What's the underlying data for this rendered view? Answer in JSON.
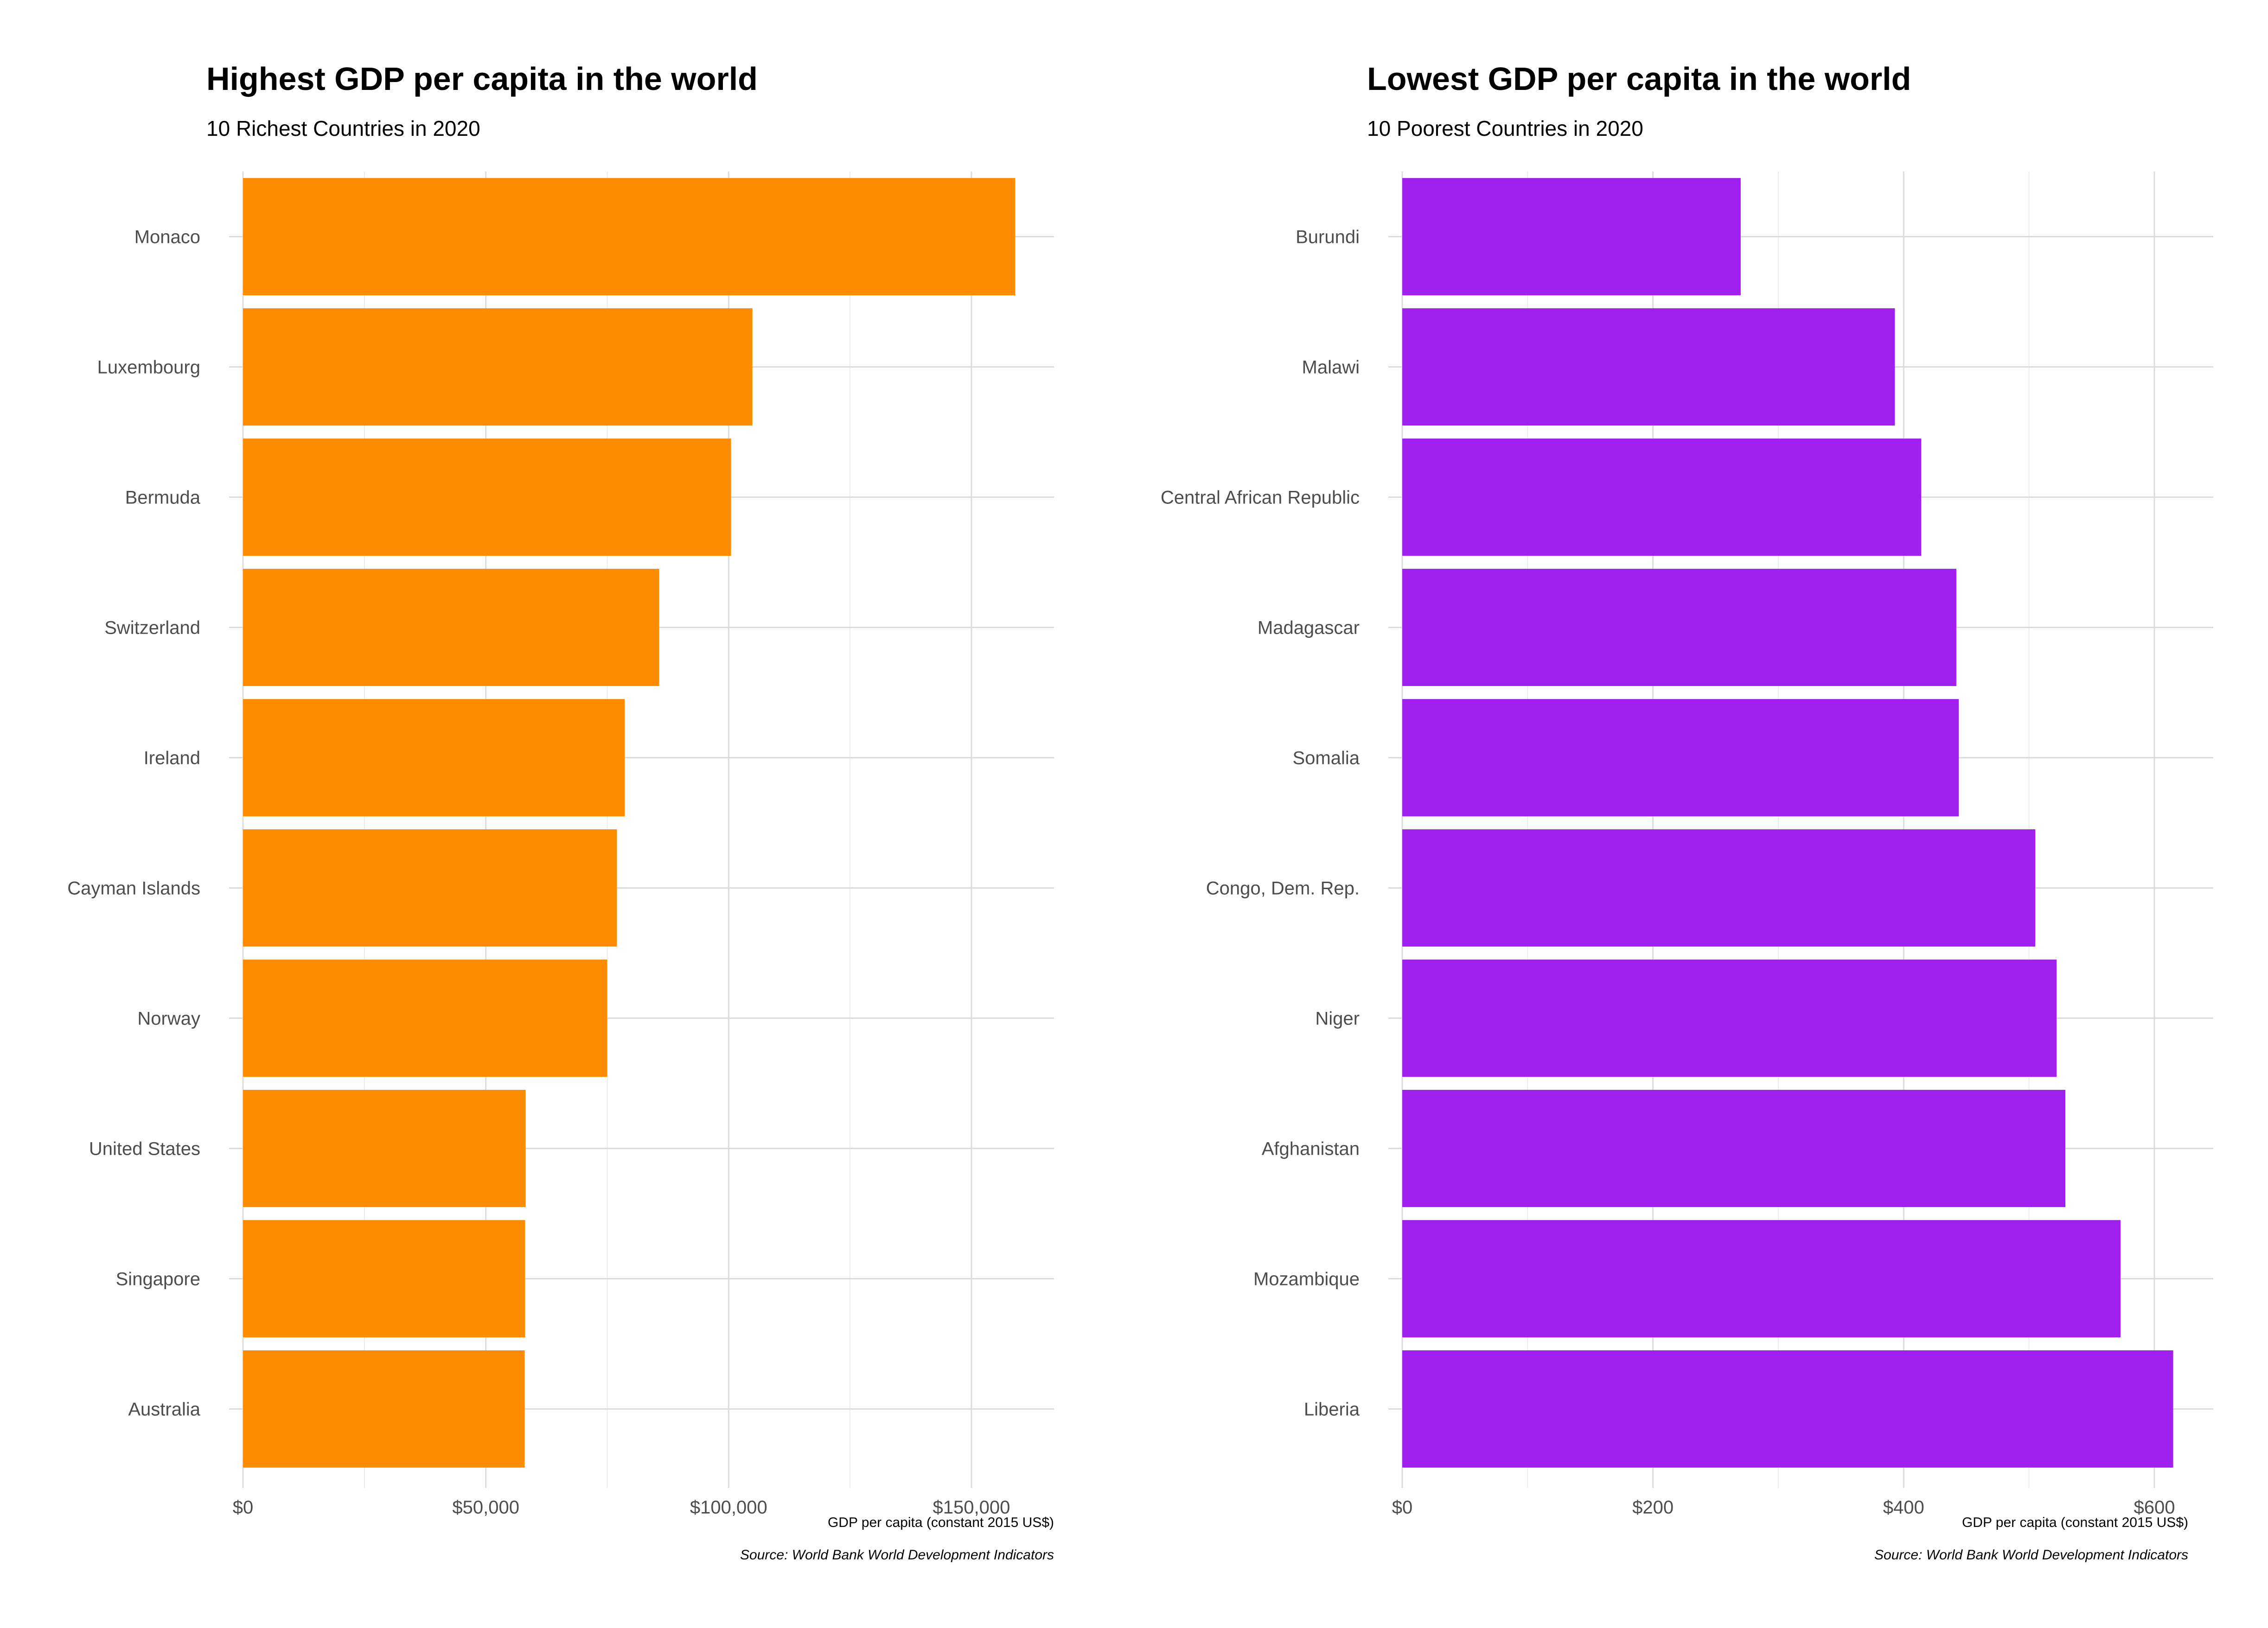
{
  "chart_data": [
    {
      "type": "bar",
      "orientation": "horizontal",
      "title": "Highest GDP per capita in the world",
      "subtitle": "10 Richest Countries in 2020",
      "xlabel": "GDP per capita (constant 2015 US$)",
      "caption": "Source: World Bank World Development Indicators",
      "categories": [
        "Monaco",
        "Luxembourg",
        "Bermuda",
        "Switzerland",
        "Ireland",
        "Cayman Islands",
        "Norway",
        "United States",
        "Singapore",
        "Australia"
      ],
      "values": [
        159000,
        104900,
        100500,
        85700,
        78600,
        77000,
        75000,
        58200,
        58100,
        58000
      ],
      "xlim": [
        0,
        167000
      ],
      "ticks": [
        0,
        50000,
        100000,
        150000
      ],
      "tick_labels": [
        "$0",
        "$50,000",
        "$100,000",
        "$150,000"
      ],
      "color": "#ff8c00",
      "grid": true,
      "legend": "none"
    },
    {
      "type": "bar",
      "orientation": "horizontal",
      "title": "Lowest GDP per capita in the world",
      "subtitle": "10 Poorest Countries in 2020",
      "xlabel": "GDP per capita (constant 2015 US$)",
      "caption": "Source: World Bank World Development Indicators",
      "categories": [
        "Burundi",
        "Malawi",
        "Central African Republic",
        "Madagascar",
        "Somalia",
        "Congo, Dem. Rep.",
        "Niger",
        "Afghanistan",
        "Mozambique",
        "Liberia"
      ],
      "values": [
        270,
        393,
        414,
        442,
        444,
        505,
        522,
        529,
        573,
        615
      ],
      "xlim": [
        0,
        647
      ],
      "ticks": [
        0,
        200,
        400,
        600
      ],
      "tick_labels": [
        "$0",
        "$200",
        "$400",
        "$600"
      ],
      "color": "#a020f0",
      "grid": true,
      "legend": "none"
    }
  ]
}
